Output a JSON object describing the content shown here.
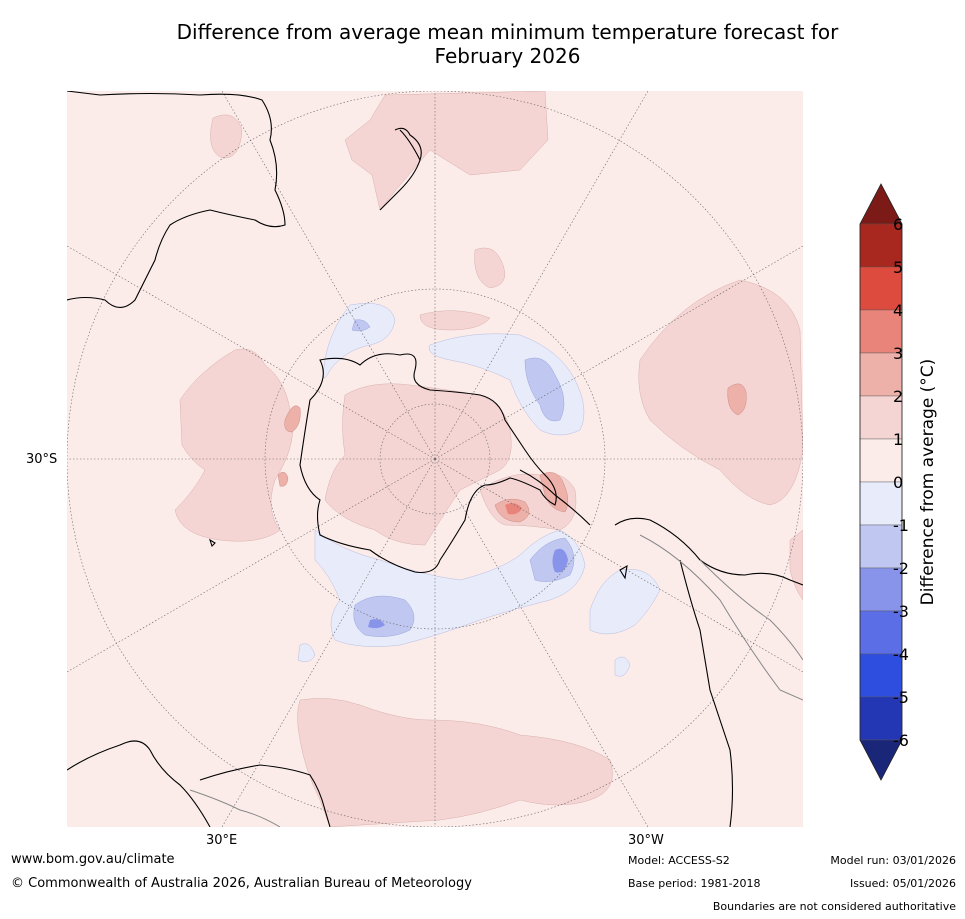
{
  "title": {
    "line1": "Difference from average mean minimum temperature forecast for",
    "line2": "February 2026"
  },
  "map": {
    "projection": "south polar stereographic",
    "latitude_label": "30°S",
    "longitude_labels": [
      "30°E",
      "30°W"
    ]
  },
  "colorbar": {
    "label": "Difference from average (°C)",
    "ticks": [
      "6",
      "5",
      "4",
      "3",
      "2",
      "1",
      "0",
      "-1",
      "-2",
      "-3",
      "-4",
      "-5",
      "-6"
    ],
    "colors": {
      "gt6": "#7b1a16",
      "c5_6": "#a8271f",
      "c4_5": "#dc4b3e",
      "c3_4": "#e8847a",
      "c2_3": "#eeb1aa",
      "c1_2": "#f5d5d3",
      "c0_1": "#fbecea",
      "cm1_0": "#e8ebfa",
      "cm2_m1": "#c0c8f1",
      "cm3_m2": "#8794e9",
      "cm4_m3": "#5b6ee6",
      "cm5_m4": "#2e4ee0",
      "cm6_m5": "#2336b3",
      "ltm6": "#1a2778"
    }
  },
  "footer": {
    "website": "www.bom.gov.au/climate",
    "copyright": "© Commonwealth of Australia 2026, Australian Bureau of Meteorology",
    "model": "Model: ACCESS-S2",
    "base_period": "Base period: 1981-2018",
    "model_run": "Model run: 03/01/2026",
    "issued": "Issued: 05/01/2026",
    "disclaimer": "Boundaries are not considered authoritative"
  }
}
